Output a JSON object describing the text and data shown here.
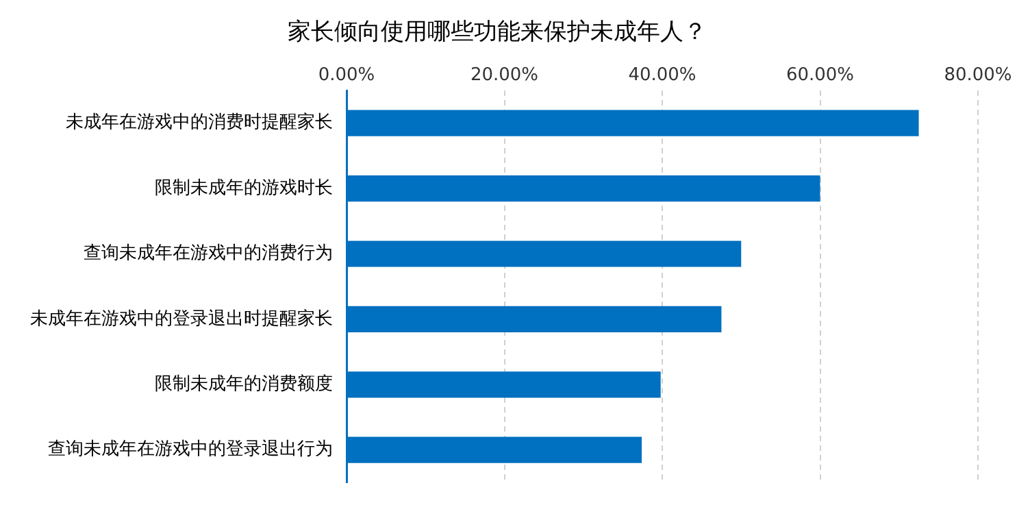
{
  "chart_data": {
    "type": "bar",
    "orientation": "horizontal",
    "title": "家长倾向使用哪些功能来保护未成年人？",
    "categories": [
      "未成年在游戏中的消费时提醒家长",
      "限制未成年的游戏时长",
      "查询未成年在游戏中的消费行为",
      "未成年在游戏中的登录退出时提醒家长",
      "限制未成年的消费额度",
      "查询未成年在游戏中的登录退出行为"
    ],
    "values": [
      72.5,
      60.0,
      50.0,
      47.5,
      39.8,
      37.4
    ],
    "color": "#0070c0",
    "xlim": [
      0,
      80
    ],
    "xticks": [
      {
        "value": 0,
        "label": "0.00%"
      },
      {
        "value": 20,
        "label": "20.00%"
      },
      {
        "value": 40,
        "label": "40.00%"
      },
      {
        "value": 60,
        "label": "60.00%"
      },
      {
        "value": 80,
        "label": "80.00%"
      }
    ],
    "grid": "x"
  }
}
